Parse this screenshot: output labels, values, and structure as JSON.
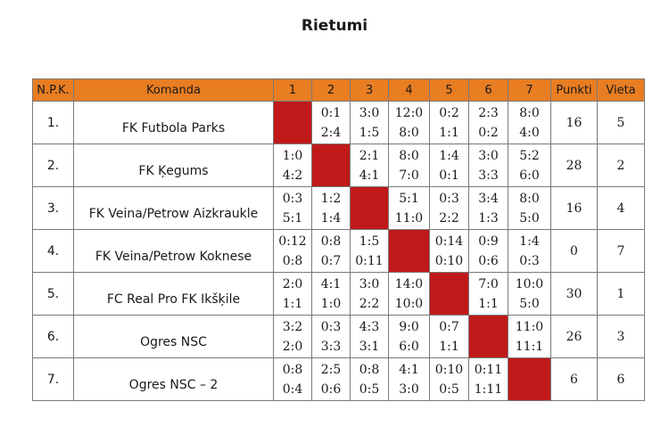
{
  "title": "Rietumi",
  "headers": {
    "npk": "N.P.K.",
    "team": "Komanda",
    "cols": [
      "1",
      "2",
      "3",
      "4",
      "5",
      "6",
      "7"
    ],
    "points": "Punkti",
    "place": "Vieta"
  },
  "self_cell_color": "#c0191a",
  "header_color": "#e87d22",
  "rows": [
    {
      "npk": "1.",
      "team": "FK Futbola Parks",
      "scores": [
        null,
        [
          "0:1",
          "2:4"
        ],
        [
          "3:0",
          "1:5"
        ],
        [
          "12:0",
          "8:0"
        ],
        [
          "0:2",
          "1:1"
        ],
        [
          "2:3",
          "0:2"
        ],
        [
          "8:0",
          "4:0"
        ]
      ],
      "points": "16",
      "place": "5"
    },
    {
      "npk": "2.",
      "team": "FK Ķegums",
      "scores": [
        [
          "1:0",
          "4:2"
        ],
        null,
        [
          "2:1",
          "4:1"
        ],
        [
          "8:0",
          "7:0"
        ],
        [
          "1:4",
          "0:1"
        ],
        [
          "3:0",
          "3:3"
        ],
        [
          "5:2",
          "6:0"
        ]
      ],
      "points": "28",
      "place": "2"
    },
    {
      "npk": "3.",
      "team": "FK Veina/Petrow Aizkraukle",
      "scores": [
        [
          "0:3",
          "5:1"
        ],
        [
          "1:2",
          "1:4"
        ],
        null,
        [
          "5:1",
          "11:0"
        ],
        [
          "0:3",
          "2:2"
        ],
        [
          "3:4",
          "1:3"
        ],
        [
          "8:0",
          "5:0"
        ]
      ],
      "points": "16",
      "place": "4"
    },
    {
      "npk": "4.",
      "team": "FK Veina/Petrow Koknese",
      "scores": [
        [
          "0:12",
          "0:8"
        ],
        [
          "0:8",
          "0:7"
        ],
        [
          "1:5",
          "0:11"
        ],
        null,
        [
          "0:14",
          "0:10"
        ],
        [
          "0:9",
          "0:6"
        ],
        [
          "1:4",
          "0:3"
        ]
      ],
      "points": "0",
      "place": "7"
    },
    {
      "npk": "5.",
      "team": "FC Real Pro FK Ikšķile",
      "scores": [
        [
          "2:0",
          "1:1"
        ],
        [
          "4:1",
          "1:0"
        ],
        [
          "3:0",
          "2:2"
        ],
        [
          "14:0",
          "10:0"
        ],
        null,
        [
          "7:0",
          "1:1"
        ],
        [
          "10:0",
          "5:0"
        ]
      ],
      "points": "30",
      "place": "1"
    },
    {
      "npk": "6.",
      "team": "Ogres NSC",
      "scores": [
        [
          "3:2",
          "2:0"
        ],
        [
          "0:3",
          "3:3"
        ],
        [
          "4:3",
          "3:1"
        ],
        [
          "9:0",
          "6:0"
        ],
        [
          "0:7",
          "1:1"
        ],
        null,
        [
          "11:0",
          "11:1"
        ]
      ],
      "points": "26",
      "place": "3"
    },
    {
      "npk": "7.",
      "team": "Ogres NSC – 2",
      "scores": [
        [
          "0:8",
          "0:4"
        ],
        [
          "2:5",
          "0:6"
        ],
        [
          "0:8",
          "0:5"
        ],
        [
          "4:1",
          "3:0"
        ],
        [
          "0:10",
          "0:5"
        ],
        [
          "0:11",
          "1:11"
        ],
        null
      ],
      "points": "6",
      "place": "6"
    }
  ]
}
